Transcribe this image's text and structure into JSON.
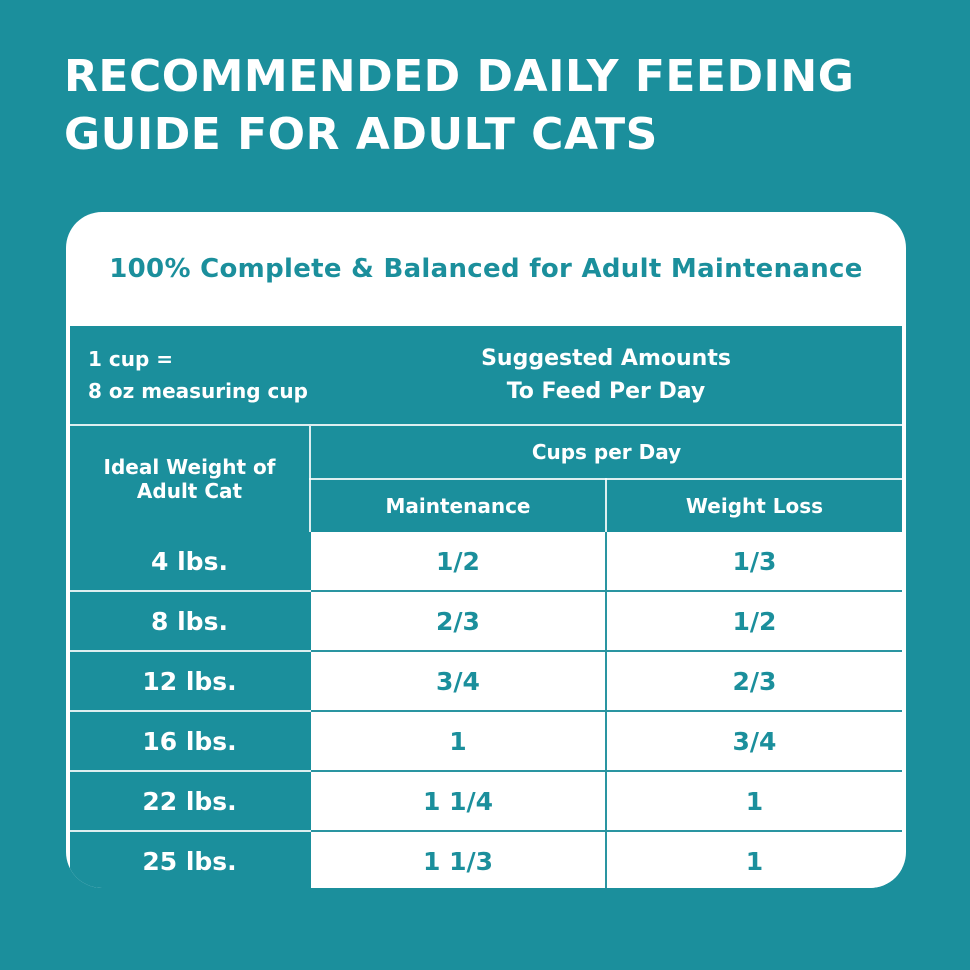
{
  "title": {
    "line1": "RECOMMENDED DAILY FEEDING",
    "line2": "GUIDE FOR ADULT CATS"
  },
  "card": {
    "subtitle": "100% Complete & Balanced for Adult Maintenance",
    "cup_note_line1": "1 cup =",
    "cup_note_line2": "8 oz measuring cup",
    "suggested_line1": "Suggested Amounts",
    "suggested_line2": "To Feed Per Day",
    "col_weight_line1": "Ideal Weight of",
    "col_weight_line2": "Adult Cat",
    "col_group": "Cups per Day",
    "col_maintenance": "Maintenance",
    "col_weight_loss": "Weight Loss"
  },
  "rows": [
    {
      "weight": "4 lbs.",
      "maintenance": "1/2",
      "weight_loss": "1/3"
    },
    {
      "weight": "8 lbs.",
      "maintenance": "2/3",
      "weight_loss": "1/2"
    },
    {
      "weight": "12 lbs.",
      "maintenance": "3/4",
      "weight_loss": "2/3"
    },
    {
      "weight": "16 lbs.",
      "maintenance": "1",
      "weight_loss": "3/4"
    },
    {
      "weight": "22 lbs.",
      "maintenance": "1 1/4",
      "weight_loss": "1"
    },
    {
      "weight": "25 lbs.",
      "maintenance": "1 1/3",
      "weight_loss": "1"
    }
  ],
  "colors": {
    "teal": "#1b8f9c",
    "white": "#ffffff"
  }
}
